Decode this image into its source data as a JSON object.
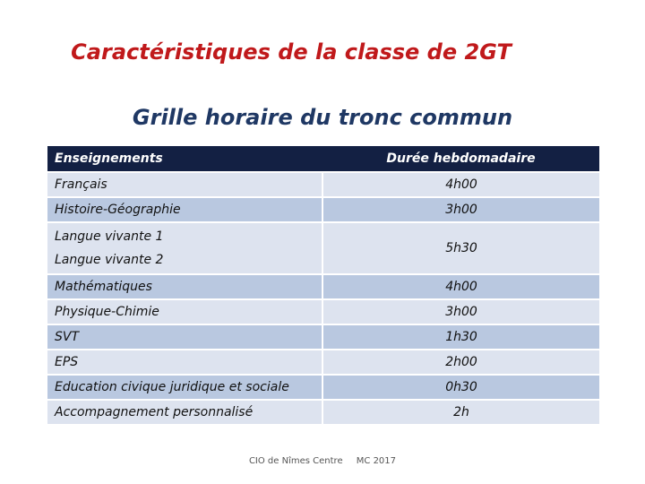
{
  "title": "Caractéristiques de la classe de 2GT",
  "subtitle": "Grille horaire du tronc commun",
  "table": {
    "headers": [
      "Enseignements",
      "Durée hebdomadaire"
    ],
    "rows": [
      {
        "subjects": [
          "Français"
        ],
        "duration": "4h00"
      },
      {
        "subjects": [
          "Histoire-Géographie"
        ],
        "duration": "3h00"
      },
      {
        "subjects": [
          "Langue vivante 1",
          "Langue vivante 2"
        ],
        "duration": "5h30"
      },
      {
        "subjects": [
          "Mathématiques"
        ],
        "duration": "4h00"
      },
      {
        "subjects": [
          "Physique-Chimie"
        ],
        "duration": "3h00"
      },
      {
        "subjects": [
          "SVT"
        ],
        "duration": "1h30"
      },
      {
        "subjects": [
          "EPS"
        ],
        "duration": "2h00"
      },
      {
        "subjects": [
          "Education civique juridique et sociale"
        ],
        "duration": "0h30"
      },
      {
        "subjects": [
          "Accompagnement personnalisé"
        ],
        "duration": "2h"
      }
    ]
  },
  "footer": {
    "source": "CIO de Nîmes Centre",
    "author": "MC 2017"
  }
}
